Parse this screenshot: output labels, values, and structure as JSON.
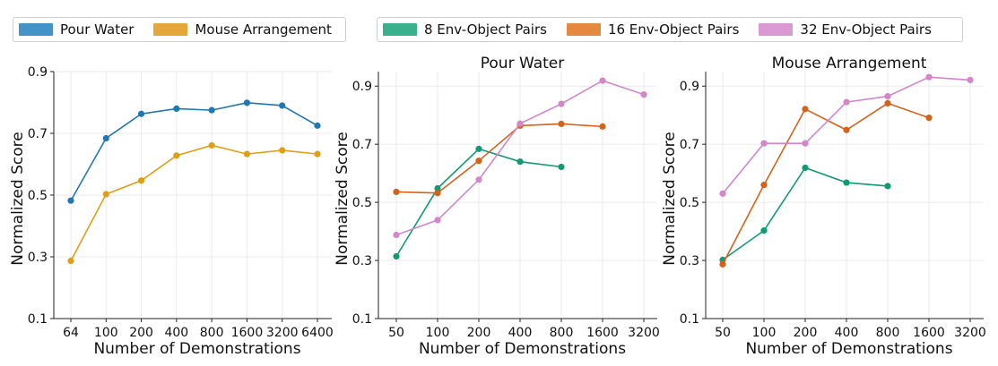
{
  "legends": [
    {
      "items": [
        {
          "label": "Pour Water",
          "color": "#4393c9"
        },
        {
          "label": "Mouse Arrangement",
          "color": "#e5a63a"
        }
      ]
    },
    {
      "items": [
        {
          "label": "8 Env-Object Pairs",
          "color": "#3ab08c"
        },
        {
          "label": "16 Env-Object Pairs",
          "color": "#e48a40"
        },
        {
          "label": "32 Env-Object Pairs",
          "color": "#da99d3"
        }
      ]
    }
  ],
  "chart_data": [
    {
      "type": "line",
      "title": "",
      "xlabel": "Number of Demonstrations",
      "ylabel": "Normalized Score",
      "categories": [
        "64",
        "100",
        "200",
        "400",
        "800",
        "1600",
        "3200",
        "6400"
      ],
      "ylim": [
        0.1,
        0.9
      ],
      "yticks": [
        "0.1",
        "0.3",
        "0.5",
        "0.7",
        "0.9"
      ],
      "grid": true,
      "series": [
        {
          "name": "Pour Water",
          "color": "#1f77b4",
          "values": [
            0.482,
            0.684,
            0.763,
            0.78,
            0.775,
            0.799,
            0.79,
            0.725
          ]
        },
        {
          "name": "Mouse Arrangement",
          "color": "#e09e17",
          "values": [
            0.287,
            0.503,
            0.547,
            0.628,
            0.661,
            0.633,
            0.645,
            0.633
          ]
        }
      ]
    },
    {
      "type": "line",
      "title": "Pour Water",
      "xlabel": "Number of Demonstrations",
      "ylabel": "Normalized Score",
      "categories": [
        "50",
        "100",
        "200",
        "400",
        "800",
        "1600",
        "3200"
      ],
      "ylim": [
        0.1,
        0.95
      ],
      "yticks": [
        "0.1",
        "0.3",
        "0.5",
        "0.7",
        "0.9"
      ],
      "grid": true,
      "series": [
        {
          "name": "8 Env-Object Pairs",
          "color": "#0f9b74",
          "values": [
            0.314,
            0.548,
            0.684,
            0.64,
            0.622,
            null,
            null
          ]
        },
        {
          "name": "16 Env-Object Pairs",
          "color": "#d4631a",
          "values": [
            0.536,
            0.532,
            0.643,
            0.764,
            0.77,
            0.761,
            null
          ]
        },
        {
          "name": "32 Env-Object Pairs",
          "color": "#d486c9",
          "values": [
            0.388,
            0.439,
            0.578,
            0.771,
            0.839,
            0.919,
            0.871
          ]
        }
      ]
    },
    {
      "type": "line",
      "title": "Mouse Arrangement",
      "xlabel": "Number of Demonstrations",
      "ylabel": "Normalized Score",
      "categories": [
        "50",
        "100",
        "200",
        "400",
        "800",
        "1600",
        "3200"
      ],
      "ylim": [
        0.1,
        0.95
      ],
      "yticks": [
        "0.1",
        "0.3",
        "0.5",
        "0.7",
        "0.9"
      ],
      "grid": true,
      "series": [
        {
          "name": "8 Env-Object Pairs",
          "color": "#0f9b74",
          "values": [
            0.302,
            0.403,
            0.619,
            0.568,
            0.556,
            null,
            null
          ]
        },
        {
          "name": "16 Env-Object Pairs",
          "color": "#d4631a",
          "values": [
            0.287,
            0.56,
            0.821,
            0.749,
            0.841,
            0.791,
            null
          ]
        },
        {
          "name": "32 Env-Object Pairs",
          "color": "#d486c9",
          "values": [
            0.53,
            0.703,
            0.703,
            0.845,
            0.865,
            0.931,
            0.921
          ]
        }
      ]
    }
  ]
}
